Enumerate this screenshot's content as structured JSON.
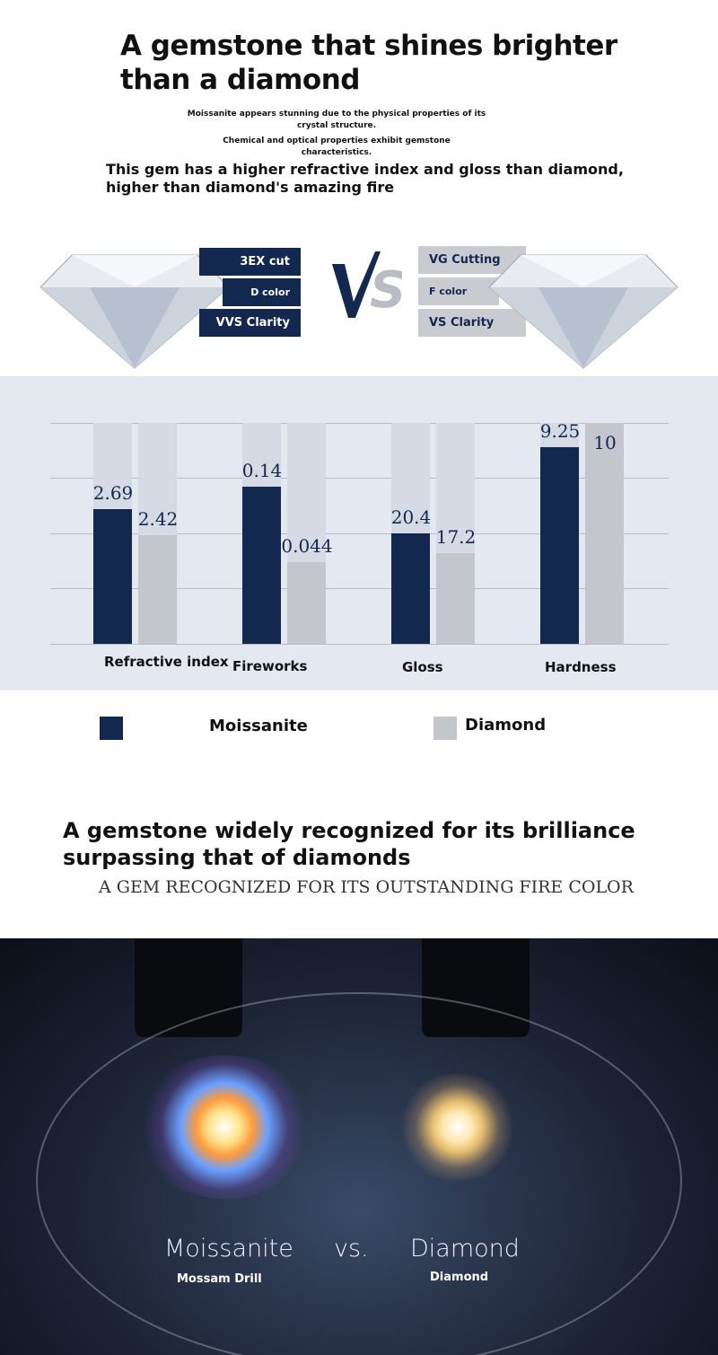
{
  "header": {
    "title": "A gemstone that shines brighter than a diamond",
    "subtitle_1": "Moissanite appears stunning due to the physical properties of its crystal structure.",
    "subtitle_2": "Chemical and optical properties exhibit gemstone characteristics.",
    "lead": "This gem has a higher refractive index and gloss than diamond, higher than diamond's amazing fire"
  },
  "comparison": {
    "left_tags": [
      "3EX cut",
      "D color",
      "VVS Clarity"
    ],
    "vs_label": "VS",
    "right_tags": [
      "VG Cutting",
      "F color",
      "VS Clarity"
    ]
  },
  "chart_data": {
    "type": "bar",
    "categories": [
      "Refractive index",
      "Fireworks",
      "Gloss",
      "Hardness"
    ],
    "series": [
      {
        "name": "Moissanite",
        "values": [
          2.69,
          0.14,
          20.4,
          9.25
        ],
        "labels": [
          "2.69",
          "0.14",
          "20.4",
          "9.25"
        ],
        "color": "#13284f"
      },
      {
        "name": "Diamond",
        "values": [
          2.42,
          0.044,
          17.2,
          10
        ],
        "labels": [
          "2.42",
          "0.044",
          "17.2",
          "10"
        ],
        "color": "#c3c6cc"
      }
    ],
    "grid": true,
    "legend": "bottom"
  },
  "section2": {
    "title": "A gemstone widely recognized for its brilliance surpassing that of diamonds",
    "subtitle": "A GEM RECOGNIZED FOR ITS OUTSTANDING FIRE COLOR"
  },
  "photo": {
    "left_label": "Moissanite",
    "vs": "vs.",
    "right_label": "Diamond",
    "left_sub": "Mossam Drill",
    "right_sub": "Diamond"
  }
}
